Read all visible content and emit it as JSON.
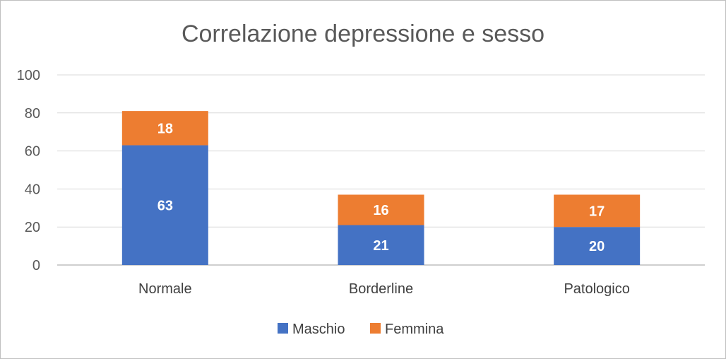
{
  "chart_data": {
    "type": "bar",
    "stacked": true,
    "title": "Correlazione depressione e sesso",
    "categories": [
      "Normale",
      "Borderline",
      "Patologico"
    ],
    "series": [
      {
        "name": "Maschio",
        "values": [
          63,
          21,
          20
        ],
        "color": "#4472c4"
      },
      {
        "name": "Femmina",
        "values": [
          18,
          16,
          17
        ],
        "color": "#ed7d31"
      }
    ],
    "ylim": [
      0,
      100
    ],
    "yticks": [
      0,
      20,
      40,
      60,
      80,
      100
    ],
    "grid": true,
    "legend": "bottom",
    "data_labels": true,
    "colors": {
      "gridline": "#d9d9d9",
      "axis": "#bfbfbf"
    }
  }
}
